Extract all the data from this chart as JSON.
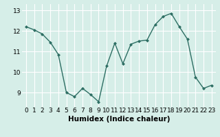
{
  "x": [
    0,
    1,
    2,
    3,
    4,
    5,
    6,
    7,
    8,
    9,
    10,
    11,
    12,
    13,
    14,
    15,
    16,
    17,
    18,
    19,
    20,
    21,
    22,
    23
  ],
  "y": [
    12.2,
    12.05,
    11.85,
    11.45,
    10.85,
    9.0,
    8.8,
    9.2,
    8.9,
    8.55,
    10.3,
    11.4,
    10.4,
    11.35,
    11.5,
    11.55,
    12.3,
    12.7,
    12.85,
    12.2,
    11.6,
    9.75,
    9.2,
    9.35
  ],
  "line_color": "#2d6e63",
  "marker": "D",
  "marker_size": 2.0,
  "linewidth": 1.0,
  "xlabel": "Humidex (Indice chaleur)",
  "xlim": [
    -0.5,
    23.5
  ],
  "ylim": [
    8.3,
    13.3
  ],
  "yticks": [
    9,
    10,
    11,
    12,
    13
  ],
  "xticks": [
    0,
    1,
    2,
    3,
    4,
    5,
    6,
    7,
    8,
    9,
    10,
    11,
    12,
    13,
    14,
    15,
    16,
    17,
    18,
    19,
    20,
    21,
    22,
    23
  ],
  "bg_color": "#d6eee8",
  "grid_color": "#ffffff",
  "tick_labelsize": 6.5,
  "xlabel_fontsize": 7.5
}
